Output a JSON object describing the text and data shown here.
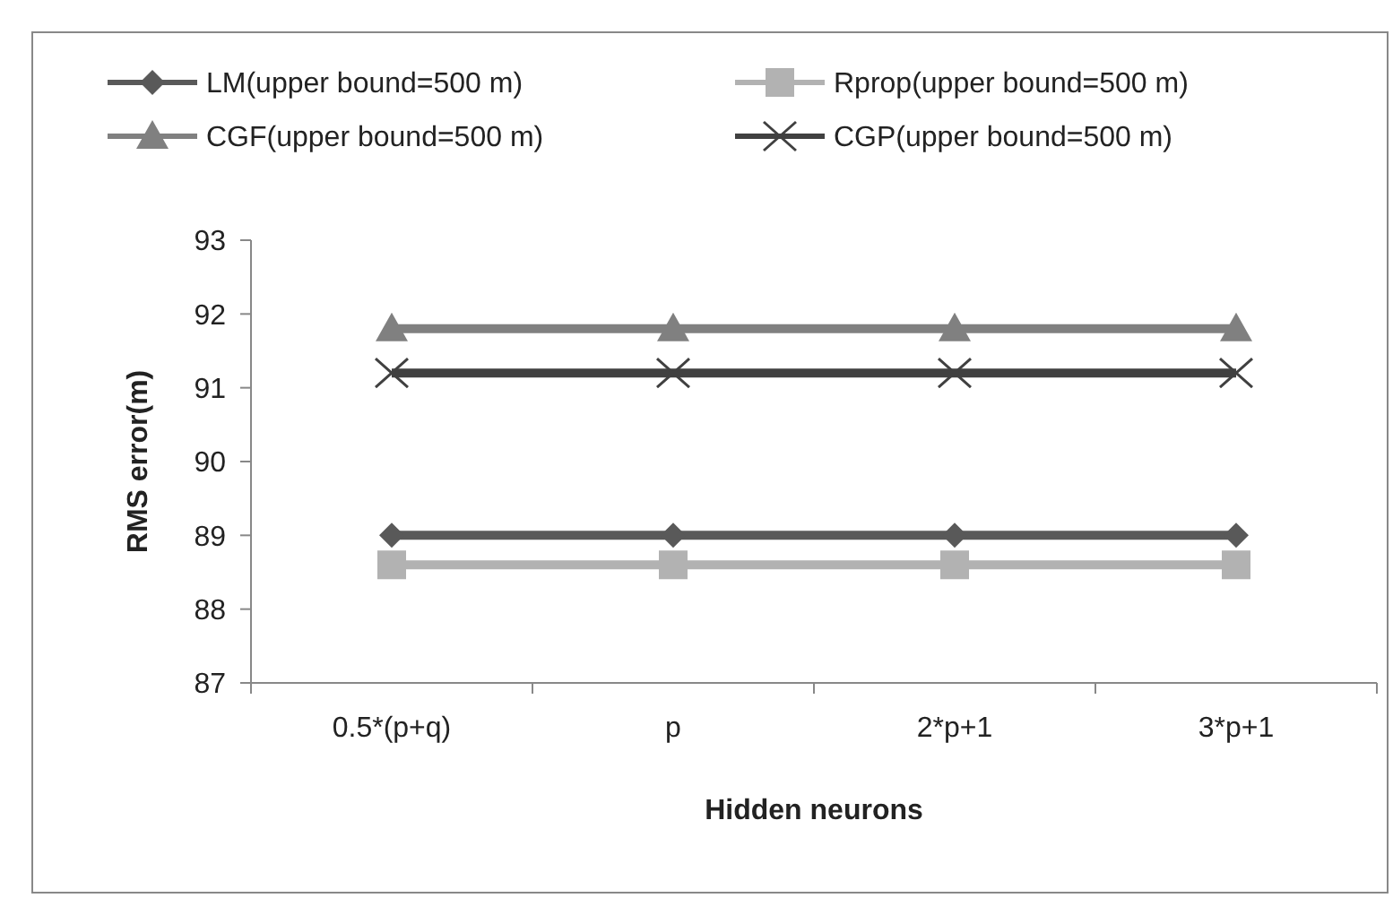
{
  "chart_data": {
    "type": "line",
    "xlabel": "Hidden neurons",
    "ylabel": "RMS error(m)",
    "categories": [
      "0.5*(p+q)",
      "p",
      "2*p+1",
      "3*p+1"
    ],
    "ylim": [
      87,
      93
    ],
    "yticks": [
      87,
      88,
      89,
      90,
      91,
      92,
      93
    ],
    "grid": false,
    "legend": "top",
    "series": [
      {
        "name": "LM(upper bound=500 m)",
        "color": "#595959",
        "marker": "diamond",
        "values": [
          89.0,
          89.0,
          89.0,
          89.0
        ]
      },
      {
        "name": "Rprop(upper bound=500 m)",
        "color": "#b2b2b2",
        "marker": "square",
        "values": [
          88.6,
          88.6,
          88.6,
          88.6
        ]
      },
      {
        "name": "CGF(upper bound=500 m)",
        "color": "#808080",
        "marker": "triangle",
        "values": [
          91.8,
          91.8,
          91.8,
          91.8
        ]
      },
      {
        "name": "CGP(upper bound=500 m)",
        "color": "#404040",
        "marker": "cross",
        "values": [
          91.2,
          91.2,
          91.2,
          91.2
        ]
      }
    ]
  }
}
